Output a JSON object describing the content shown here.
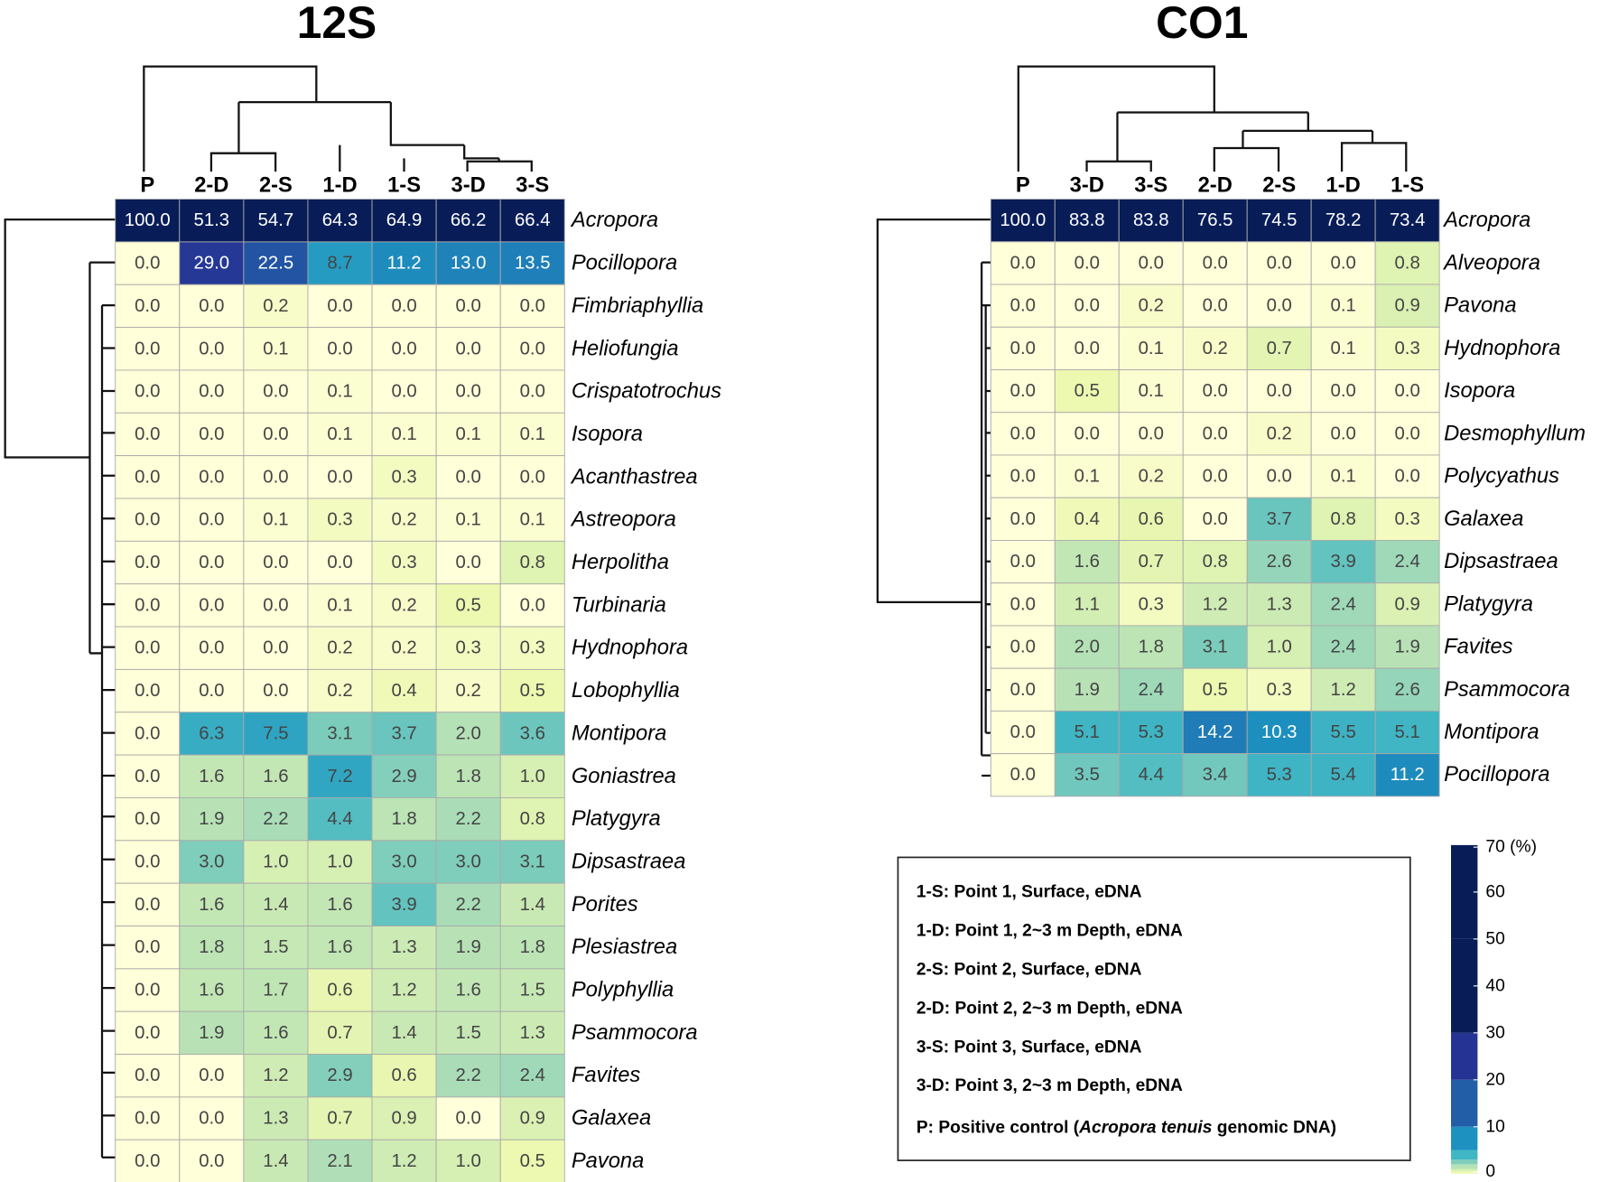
{
  "chart_data": [
    {
      "type": "heatmap",
      "title": "12S",
      "columns": [
        "P",
        "2-D",
        "2-S",
        "1-D",
        "1-S",
        "3-D",
        "3-S"
      ],
      "rows": [
        "Acropora",
        "Pocillopora",
        "Fimbriaphyllia",
        "Heliofungia",
        "Crispatotrochus",
        "Isopora",
        "Acanthastrea",
        "Astreopora",
        "Herpolitha",
        "Turbinaria",
        "Hydnophora",
        "Lobophyllia",
        "Montipora",
        "Goniastrea",
        "Platygyra",
        "Dipsastraea",
        "Porites",
        "Plesiastrea",
        "Polyphyllia",
        "Psammocora",
        "Favites",
        "Galaxea",
        "Pavona"
      ],
      "values": [
        [
          100.0,
          51.3,
          54.7,
          64.3,
          64.9,
          66.2,
          66.4
        ],
        [
          0.0,
          29.0,
          22.5,
          8.7,
          11.2,
          13.0,
          13.5
        ],
        [
          0.0,
          0.0,
          0.2,
          0.0,
          0.0,
          0.0,
          0.0
        ],
        [
          0.0,
          0.0,
          0.1,
          0.0,
          0.0,
          0.0,
          0.0
        ],
        [
          0.0,
          0.0,
          0.0,
          0.1,
          0.0,
          0.0,
          0.0
        ],
        [
          0.0,
          0.0,
          0.0,
          0.1,
          0.1,
          0.1,
          0.1
        ],
        [
          0.0,
          0.0,
          0.0,
          0.0,
          0.3,
          0.0,
          0.0
        ],
        [
          0.0,
          0.0,
          0.1,
          0.3,
          0.2,
          0.1,
          0.1
        ],
        [
          0.0,
          0.0,
          0.0,
          0.0,
          0.3,
          0.0,
          0.8
        ],
        [
          0.0,
          0.0,
          0.0,
          0.1,
          0.2,
          0.5,
          0.0
        ],
        [
          0.0,
          0.0,
          0.0,
          0.2,
          0.2,
          0.3,
          0.3
        ],
        [
          0.0,
          0.0,
          0.0,
          0.2,
          0.4,
          0.2,
          0.5
        ],
        [
          0.0,
          6.3,
          7.5,
          3.1,
          3.7,
          2.0,
          3.6
        ],
        [
          0.0,
          1.6,
          1.6,
          7.2,
          2.9,
          1.8,
          1.0
        ],
        [
          0.0,
          1.9,
          2.2,
          4.4,
          1.8,
          2.2,
          0.8
        ],
        [
          0.0,
          3.0,
          1.0,
          1.0,
          3.0,
          3.0,
          3.1
        ],
        [
          0.0,
          1.6,
          1.4,
          1.6,
          3.9,
          2.2,
          1.4
        ],
        [
          0.0,
          1.8,
          1.5,
          1.6,
          1.3,
          1.9,
          1.8
        ],
        [
          0.0,
          1.6,
          1.7,
          0.6,
          1.2,
          1.6,
          1.5
        ],
        [
          0.0,
          1.9,
          1.6,
          0.7,
          1.4,
          1.5,
          1.3
        ],
        [
          0.0,
          0.0,
          1.2,
          2.9,
          0.6,
          2.2,
          2.4
        ],
        [
          0.0,
          0.0,
          1.3,
          0.7,
          0.9,
          0.0,
          0.9
        ],
        [
          0.0,
          0.0,
          1.4,
          2.1,
          1.2,
          1.0,
          0.5
        ]
      ]
    },
    {
      "type": "heatmap",
      "title": "CO1",
      "columns": [
        "P",
        "3-D",
        "3-S",
        "2-D",
        "2-S",
        "1-D",
        "1-S"
      ],
      "rows": [
        "Acropora",
        "Alveopora",
        "Pavona",
        "Hydnophora",
        "Isopora",
        "Desmophyllum",
        "Polycyathus",
        "Galaxea",
        "Dipsastraea",
        "Platygyra",
        "Favites",
        "Psammocora",
        "Montipora",
        "Pocillopora"
      ],
      "values": [
        [
          100.0,
          83.8,
          83.8,
          76.5,
          74.5,
          78.2,
          73.4
        ],
        [
          0.0,
          0.0,
          0.0,
          0.0,
          0.0,
          0.0,
          0.8
        ],
        [
          0.0,
          0.0,
          0.2,
          0.0,
          0.0,
          0.1,
          0.9
        ],
        [
          0.0,
          0.0,
          0.1,
          0.2,
          0.7,
          0.1,
          0.3
        ],
        [
          0.0,
          0.5,
          0.1,
          0.0,
          0.0,
          0.0,
          0.0
        ],
        [
          0.0,
          0.0,
          0.0,
          0.0,
          0.2,
          0.0,
          0.0
        ],
        [
          0.0,
          0.1,
          0.2,
          0.0,
          0.0,
          0.1,
          0.0
        ],
        [
          0.0,
          0.4,
          0.6,
          0.0,
          3.7,
          0.8,
          0.3
        ],
        [
          0.0,
          1.6,
          0.7,
          0.8,
          2.6,
          3.9,
          2.4
        ],
        [
          0.0,
          1.1,
          0.3,
          1.2,
          1.3,
          2.4,
          0.9
        ],
        [
          0.0,
          2.0,
          1.8,
          3.1,
          1.0,
          2.4,
          1.9
        ],
        [
          0.0,
          1.9,
          2.4,
          0.5,
          0.3,
          1.2,
          2.6
        ],
        [
          0.0,
          5.1,
          5.3,
          14.2,
          10.3,
          5.5,
          5.1
        ],
        [
          0.0,
          3.5,
          4.4,
          3.4,
          5.3,
          5.4,
          11.2
        ]
      ]
    }
  ],
  "colorbar": {
    "range": [
      0,
      70
    ],
    "ticks": [
      "0",
      "10",
      "20",
      "30",
      "40",
      "50",
      "60",
      "70 (%)"
    ],
    "tick_values": [
      0,
      10,
      20,
      30,
      40,
      50,
      60,
      70
    ],
    "palette": [
      {
        "v": 0,
        "c": "#ffffd9"
      },
      {
        "v": 0.5,
        "c": "#edf8b1"
      },
      {
        "v": 1,
        "c": "#d6efb3"
      },
      {
        "v": 2,
        "c": "#b5e1b6"
      },
      {
        "v": 3,
        "c": "#7fcdbb"
      },
      {
        "v": 5,
        "c": "#41b6c4"
      },
      {
        "v": 10,
        "c": "#1d91c0"
      },
      {
        "v": 20,
        "c": "#225ea8"
      },
      {
        "v": 30,
        "c": "#253494"
      },
      {
        "v": 50,
        "c": "#081d58"
      },
      {
        "v": 70,
        "c": "#081d58"
      }
    ]
  },
  "legend": {
    "items": [
      "1-S: Point 1, Surface, eDNA",
      "1-D: Point 1, 2~3 m Depth, eDNA",
      "2-S: Point 2, Surface, eDNA",
      "2-D: Point 2, 2~3 m Depth, eDNA",
      "3-S: Point 3, Surface, eDNA",
      "3-D: Point 3, 2~3 m Depth, eDNA"
    ],
    "control_prefix": "P: Positive control (",
    "control_species": "Acropora tenuis",
    "control_suffix": " genomic DNA)"
  }
}
